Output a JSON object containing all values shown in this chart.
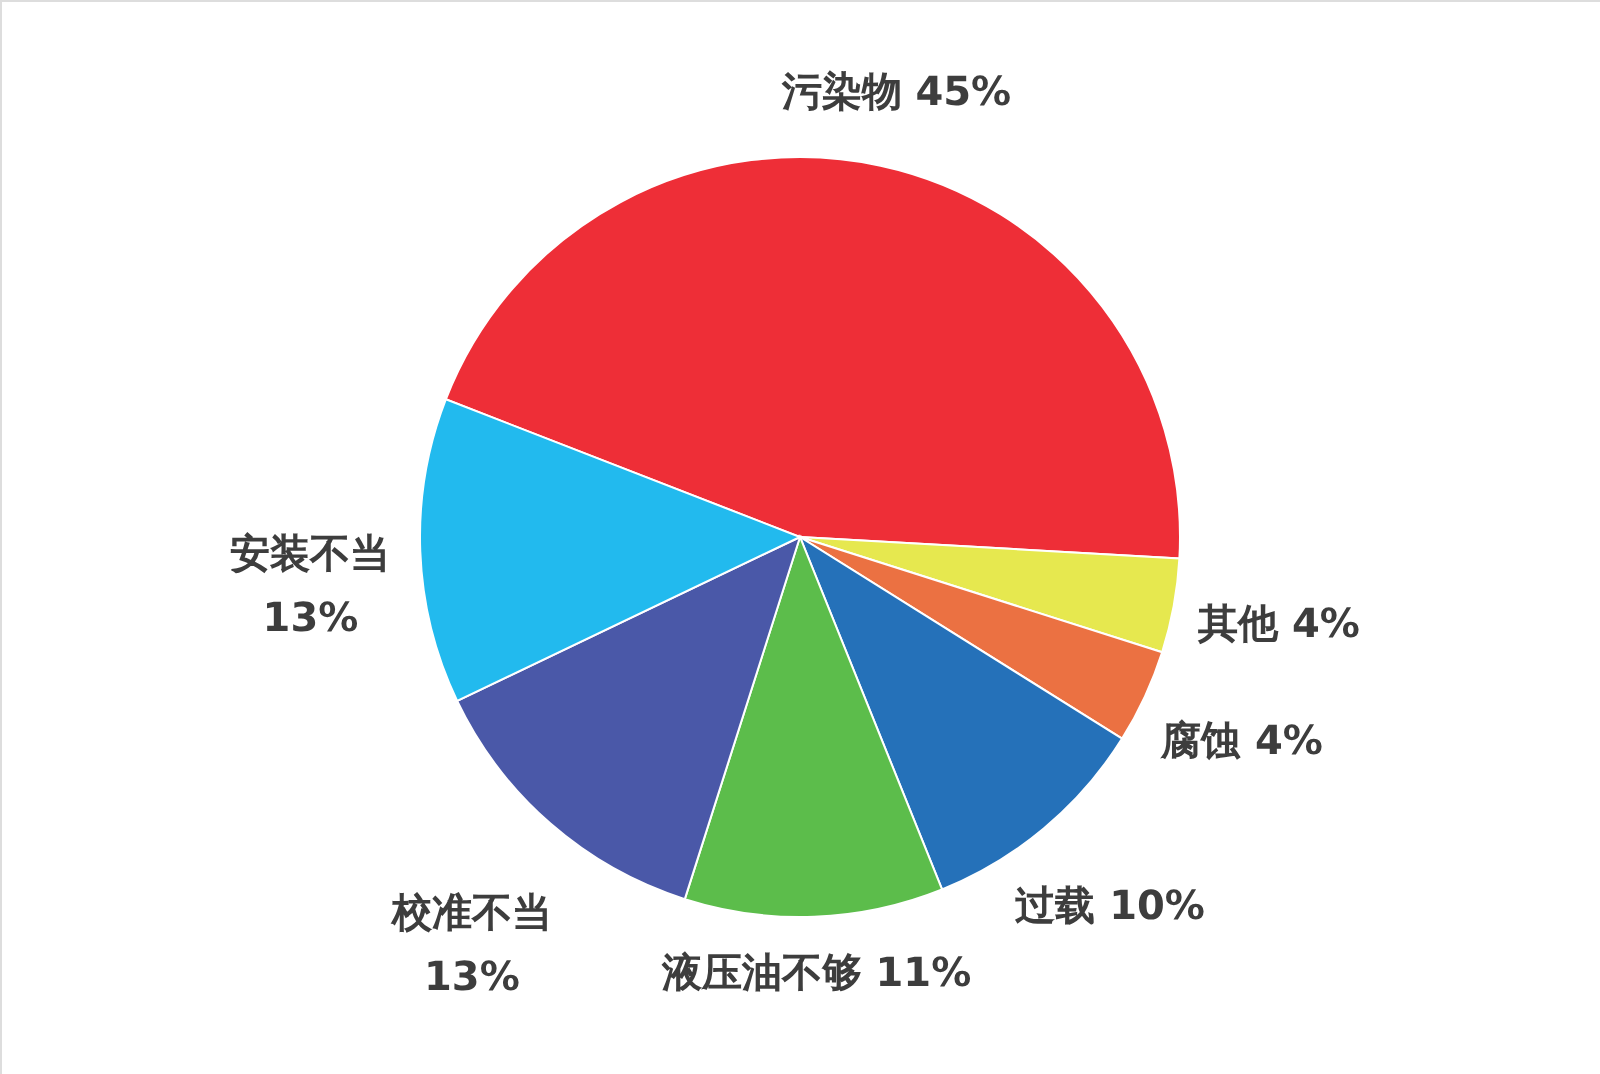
{
  "chart_data": {
    "type": "pie",
    "categories": [
      "污染物",
      "其他",
      "腐蚀",
      "过载",
      "液压油不够",
      "校准不当",
      "安装不当"
    ],
    "values": [
      45,
      4,
      4,
      10,
      11,
      13,
      13
    ],
    "colors": [
      "#ee2e37",
      "#e6e84f",
      "#eb7142",
      "#2571b9",
      "#5cbd4b",
      "#4a58a8",
      "#22baee"
    ],
    "value_labels": [
      "45%",
      "4%",
      "4%",
      "10%",
      "11%",
      "13%",
      "13%"
    ]
  }
}
